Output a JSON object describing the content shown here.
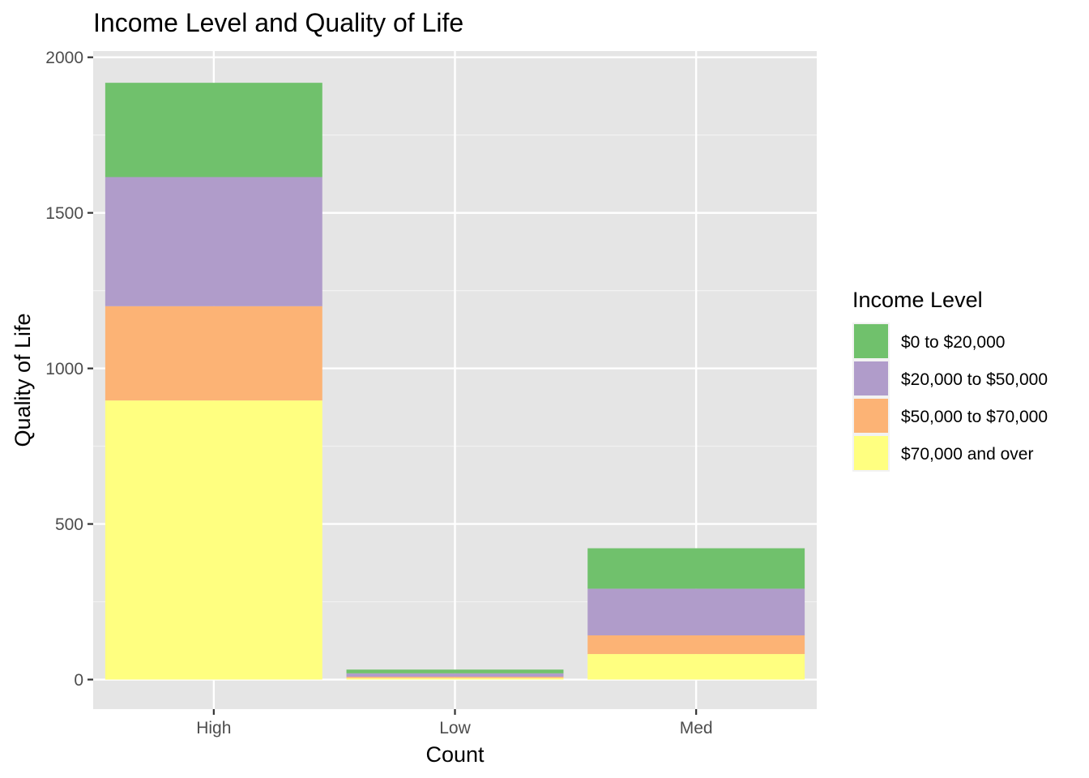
{
  "chart_data": {
    "type": "bar",
    "stacked": true,
    "title": "Income Level and Quality of Life",
    "xlabel": "Count",
    "ylabel": "Quality of Life",
    "categories": [
      "High",
      "Low",
      "Med"
    ],
    "ylim": [
      -95,
      2020
    ],
    "yticks": [
      0,
      500,
      1000,
      1500,
      2000
    ],
    "grid": true,
    "legend": {
      "title": "Income Level",
      "position": "right"
    },
    "series": [
      {
        "name": "$70,000 and over",
        "color": "#FFFF80",
        "values": [
          897,
          5,
          82
        ]
      },
      {
        "name": "$50,000 to $70,000",
        "color": "#FCB375",
        "values": [
          303,
          4,
          60
        ]
      },
      {
        "name": "$20,000 to $50,000",
        "color": "#B09CCA",
        "values": [
          415,
          11,
          150
        ]
      },
      {
        "name": "$0 to $20,000",
        "color": "#70C16C",
        "values": [
          303,
          12,
          130
        ]
      }
    ],
    "legend_order": [
      "$0 to $20,000",
      "$20,000 to $50,000",
      "$50,000 to $70,000",
      "$70,000 and over"
    ]
  }
}
